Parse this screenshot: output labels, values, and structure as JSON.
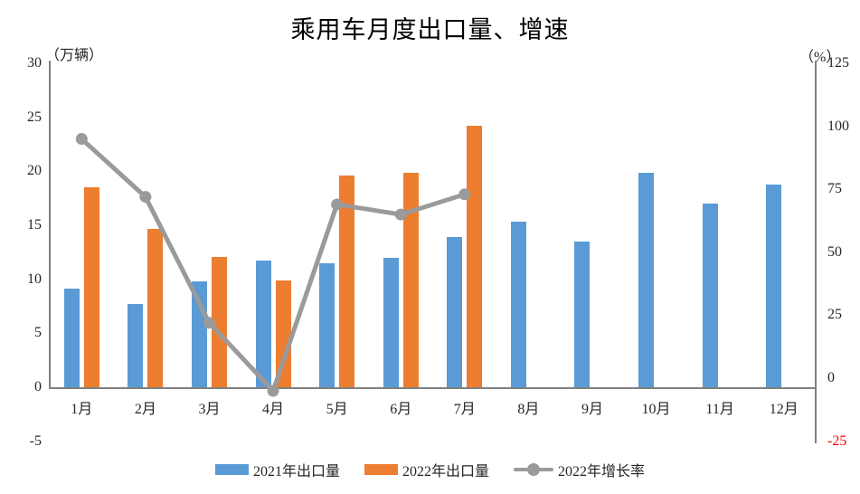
{
  "chart_data": {
    "type": "bar",
    "subtype": "grouped-bars-with-line-overlay",
    "title": "乘用车月度出口量、增速",
    "categories": [
      "1月",
      "2月",
      "3月",
      "4月",
      "5月",
      "6月",
      "7月",
      "8月",
      "9月",
      "10月",
      "11月",
      "12月"
    ],
    "series": [
      {
        "name": "2021年出口量",
        "kind": "bar",
        "axis": "left",
        "color": "#5B9BD5",
        "values": [
          9.1,
          7.7,
          9.8,
          11.7,
          11.5,
          12.0,
          13.9,
          15.3,
          13.5,
          19.9,
          17.0,
          18.8
        ]
      },
      {
        "name": "2022年出口量",
        "kind": "bar",
        "axis": "left",
        "color": "#ED7D31",
        "values": [
          18.5,
          14.7,
          12.1,
          9.9,
          19.6,
          19.9,
          24.2,
          null,
          null,
          null,
          null,
          null
        ]
      },
      {
        "name": "2022年增长率",
        "kind": "line",
        "axis": "right",
        "color": "#9a9a9a",
        "values": [
          95,
          72,
          22,
          -5,
          69,
          65,
          73,
          null,
          null,
          null,
          null,
          null
        ]
      }
    ],
    "left_axis": {
      "label": "（万辆）",
      "ticks": [
        30,
        25,
        20,
        15,
        10,
        5,
        0,
        -5
      ],
      "min": -5,
      "max": 30
    },
    "right_axis": {
      "label": "（%）",
      "ticks": [
        125,
        100,
        75,
        50,
        25,
        0,
        -25
      ],
      "min": -25,
      "max": 125,
      "negative_tick_color": "#FF0000"
    },
    "grid": false,
    "legend_position": "bottom",
    "axis_line_color": "#808080",
    "text_color": "#262626"
  }
}
